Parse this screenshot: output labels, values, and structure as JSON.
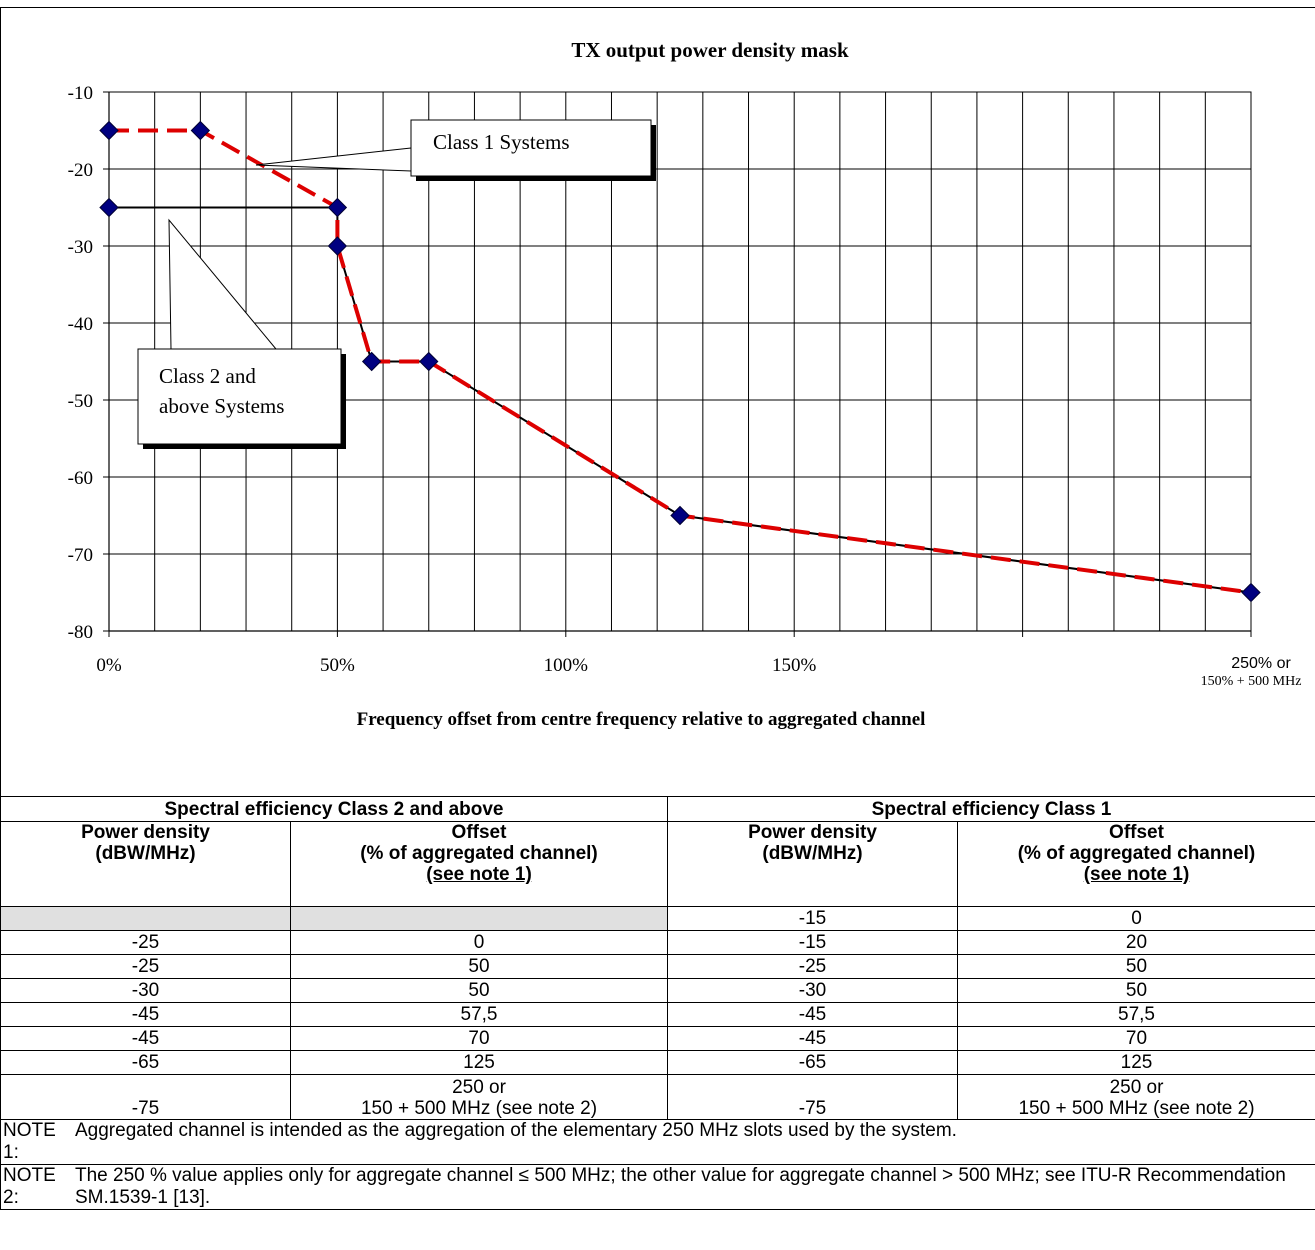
{
  "chart_data": {
    "type": "line",
    "title": "TX output power density mask",
    "xlabel": "Frequency offset from centre frequency relative to aggregated channel",
    "ylabel": "",
    "ylim": [
      -80,
      -10
    ],
    "xlim": [
      0,
      250
    ],
    "yticks": [
      -10,
      -20,
      -30,
      -40,
      -50,
      -60,
      -70,
      -80
    ],
    "xtick_labels": [
      {
        "x": 0,
        "label": "0%"
      },
      {
        "x": 50,
        "label": "50%"
      },
      {
        "x": 100,
        "label": "100%"
      },
      {
        "x": 150,
        "label": "150%"
      },
      {
        "x": 250,
        "label": "250%  or",
        "sublabel": "150% + 500 MHz"
      }
    ],
    "grid": true,
    "series": [
      {
        "name": "Class 1 Systems",
        "color": "#dd0000",
        "style": "dashed",
        "x": [
          0,
          20,
          50,
          50,
          57.5,
          70,
          125,
          250
        ],
        "y": [
          -15,
          -15,
          -25,
          -30,
          -45,
          -45,
          -65,
          -75
        ]
      },
      {
        "name": "Class 2 and above Systems",
        "color": "#000000",
        "style": "solid",
        "x": [
          0,
          50,
          50,
          57.5,
          70,
          125,
          250
        ],
        "y": [
          -25,
          -25,
          -30,
          -45,
          -45,
          -65,
          -75
        ]
      }
    ],
    "marker_color": "#000080",
    "annotations": [
      {
        "text": "Class 1 Systems",
        "series": 0
      },
      {
        "text_lines": [
          "Class 2 and",
          "above Systems"
        ],
        "series": 1
      }
    ]
  },
  "table": {
    "group_headers": [
      "Spectral efficiency Class 2 and above",
      "Spectral efficiency Class 1"
    ],
    "col_headers": [
      {
        "line1": "Power density",
        "line2": "(dBW/MHz)",
        "line3": ""
      },
      {
        "line1": "Offset",
        "line2": "(% of aggregated channel)",
        "line3": "(see note 1)"
      },
      {
        "line1": "Power density",
        "line2": "(dBW/MHz)",
        "line3": ""
      },
      {
        "line1": "Offset",
        "line2": "(% of aggregated channel)",
        "line3": "(see note 1)"
      }
    ],
    "rows": [
      [
        "",
        "",
        "-15",
        "0"
      ],
      [
        "-25",
        "0",
        "-15",
        "20"
      ],
      [
        "-25",
        "50",
        "-25",
        "50"
      ],
      [
        "-30",
        "50",
        "-30",
        "50"
      ],
      [
        "-45",
        "57,5",
        "-45",
        "57,5"
      ],
      [
        "-45",
        "70",
        "-45",
        "70"
      ],
      [
        "-65",
        "125",
        "-65",
        "125"
      ]
    ],
    "last_row": {
      "c1": "-75",
      "c2_line1": "250 or",
      "c2_line2": "150 + 500 MHz (see note 2)",
      "c3": "-75",
      "c4_line1": "250 or",
      "c4_line2": "150 + 500 MHz (see note 2)"
    },
    "notes": [
      {
        "label": "NOTE 1:",
        "text": "Aggregated channel is intended as the aggregation of the elementary 250 MHz slots used by the system."
      },
      {
        "label": "NOTE 2:",
        "text": "The 250 % value applies only for aggregate channel ≤ 500 MHz; the other value for aggregate channel > 500 MHz; see ITU-R Recommendation SM.1539-1 [13]."
      }
    ]
  }
}
